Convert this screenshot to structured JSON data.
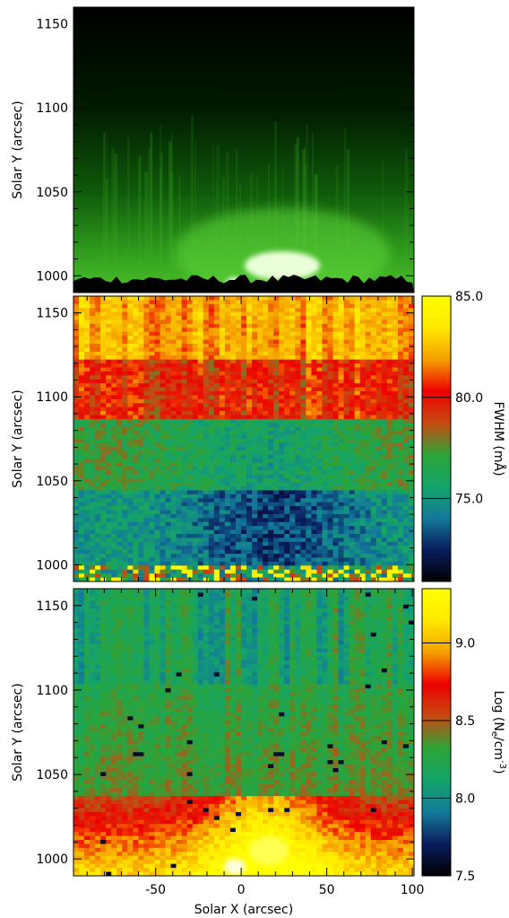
{
  "chart_data": [
    {
      "type": "heatmap",
      "title": "",
      "xlabel": "",
      "ylabel": "Solar Y (arcsec)",
      "xlim": [
        -98,
        101
      ],
      "ylim": [
        990,
        1160
      ],
      "xticks": [],
      "yticks": [
        "1000",
        "1050",
        "1100",
        "1150"
      ],
      "colormap": "green intensity",
      "features": [
        {
          "label": "bright loop top",
          "x": 25,
          "y": 1008
        },
        {
          "label": "bright footpoint",
          "x": -2,
          "y": 994
        }
      ]
    },
    {
      "type": "heatmap",
      "title": "",
      "xlabel": "",
      "ylabel": "Solar Y (arcsec)",
      "xlim": [
        -98,
        101
      ],
      "ylim": [
        990,
        1160
      ],
      "xticks": [],
      "yticks": [
        "1000",
        "1050",
        "1100",
        "1150"
      ],
      "colorbar": {
        "label_main": "FWHM (m",
        "label_unit": "Å",
        "label_end": ")",
        "range": [
          70.9,
          85.0
        ],
        "ticks": [
          "75.0",
          "80.0",
          "85.0"
        ],
        "colors": [
          "#000000",
          "#0a1c5e",
          "#137a9a",
          "#14a46a",
          "#2da436",
          "#c74a12",
          "#ee0000",
          "#f5a000",
          "#ffe800",
          "#ffff00"
        ]
      }
    },
    {
      "type": "heatmap",
      "title": "",
      "xlabel": "Solar X (arcsec)",
      "ylabel": "Solar Y (arcsec)",
      "xlim": [
        -98,
        101
      ],
      "ylim": [
        990,
        1160
      ],
      "xticks": [
        "-50",
        "0",
        "50",
        "100"
      ],
      "yticks": [
        "1000",
        "1050",
        "1100",
        "1150"
      ],
      "colorbar": {
        "label_main": "Log (N",
        "label_sub": "e",
        "label_mid": "/cm",
        "label_sup": "-3",
        "label_end": ")",
        "range": [
          7.5,
          9.35
        ],
        "ticks": [
          "7.5",
          "8.0",
          "8.5",
          "9.0"
        ],
        "colors": [
          "#000000",
          "#0a1c5e",
          "#137a9a",
          "#14a46a",
          "#2da436",
          "#c74a12",
          "#ee0000",
          "#f5a000",
          "#ffe800",
          "#ffff00"
        ]
      }
    }
  ]
}
